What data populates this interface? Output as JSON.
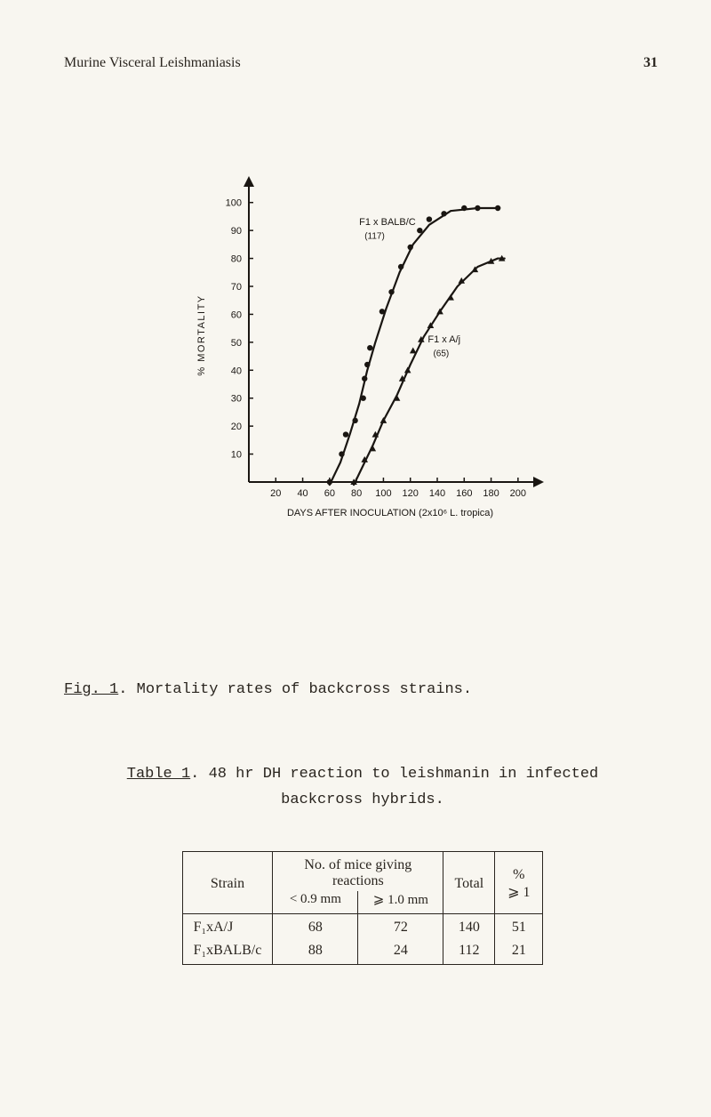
{
  "header": {
    "left": "Murine Visceral Leishmaniasis",
    "page": "31"
  },
  "chart": {
    "type": "line",
    "y_label": "% MORTALITY",
    "x_label": "DAYS   AFTER   INOCULATION  (2x10⁶ L. tropica)",
    "x_ticks": [
      20,
      40,
      60,
      80,
      100,
      120,
      140,
      160,
      180,
      200
    ],
    "y_ticks": [
      10,
      20,
      30,
      40,
      50,
      60,
      70,
      80,
      90,
      100
    ],
    "xlim": [
      0,
      210
    ],
    "ylim": [
      0,
      105
    ],
    "axis_color": "#1a1612",
    "point_fill": "#1a1612",
    "line_color": "#1a1612",
    "line_width": 2.2,
    "tick_fontsize": 11,
    "label_fontsize": 11,
    "series": [
      {
        "name": "F1 x BALB/c",
        "label": "F1 x BALB/C",
        "label_sub": "(117)",
        "marker": "circle",
        "marker_size": 3.2,
        "points": [
          [
            60,
            0
          ],
          [
            69,
            10
          ],
          [
            72,
            17
          ],
          [
            79,
            22
          ],
          [
            85,
            30
          ],
          [
            86,
            37
          ],
          [
            88,
            42
          ],
          [
            90,
            48
          ],
          [
            99,
            61
          ],
          [
            106,
            68
          ],
          [
            113,
            77
          ],
          [
            120,
            84
          ],
          [
            127,
            90
          ],
          [
            134,
            94
          ],
          [
            145,
            96
          ],
          [
            160,
            98
          ],
          [
            170,
            98
          ],
          [
            185,
            98
          ]
        ],
        "curve": [
          [
            60,
            -1
          ],
          [
            68,
            7
          ],
          [
            75,
            17
          ],
          [
            82,
            28
          ],
          [
            88,
            40
          ],
          [
            94,
            50
          ],
          [
            102,
            62
          ],
          [
            112,
            75
          ],
          [
            122,
            85
          ],
          [
            134,
            92
          ],
          [
            150,
            97
          ],
          [
            170,
            98
          ],
          [
            185,
            98
          ]
        ]
      },
      {
        "name": "F1 x A/j",
        "label": "F1 x A/j",
        "label_sub": "(65)",
        "marker": "triangle",
        "marker_size": 3.8,
        "points": [
          [
            78,
            0
          ],
          [
            86,
            8
          ],
          [
            92,
            12
          ],
          [
            94,
            17
          ],
          [
            100,
            22
          ],
          [
            110,
            30
          ],
          [
            114,
            37
          ],
          [
            118,
            40
          ],
          [
            122,
            47
          ],
          [
            128,
            51
          ],
          [
            135,
            56
          ],
          [
            142,
            61
          ],
          [
            150,
            66
          ],
          [
            158,
            72
          ],
          [
            168,
            76
          ],
          [
            180,
            79
          ],
          [
            188,
            80
          ]
        ],
        "curve": [
          [
            78,
            -1
          ],
          [
            85,
            6
          ],
          [
            92,
            13
          ],
          [
            100,
            22
          ],
          [
            110,
            31
          ],
          [
            120,
            42
          ],
          [
            130,
            52
          ],
          [
            142,
            61
          ],
          [
            155,
            70
          ],
          [
            170,
            77
          ],
          [
            185,
            80
          ],
          [
            190,
            80
          ]
        ]
      }
    ]
  },
  "fig_caption": {
    "label": "Fig. 1",
    "sep": ".  ",
    "text": "Mortality rates of backcross strains."
  },
  "tab_caption": {
    "label": "Table 1",
    "sep": ".   ",
    "text_line1": "48 hr DH reaction to leishmanin in infected",
    "text_line2": "backcross hybrids."
  },
  "table": {
    "type": "table",
    "header": {
      "strain": "Strain",
      "mice_header": "No. of mice giving reactions",
      "col_a": "< 0.9 mm",
      "col_b": "⩾ 1.0 mm",
      "total": "Total",
      "pct": "% ⩾ 1"
    },
    "rows": [
      {
        "strain": "F₁xA/J",
        "a": "68",
        "b": "72",
        "total": "140",
        "pct": "51"
      },
      {
        "strain": "F₁xBALB/c",
        "a": "88",
        "b": "24",
        "total": "112",
        "pct": "21"
      }
    ],
    "col_widths": [
      "80px",
      "96px",
      "96px",
      "58px",
      "54px"
    ]
  }
}
